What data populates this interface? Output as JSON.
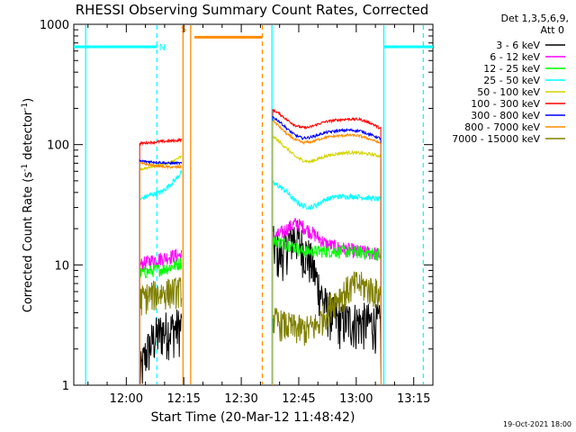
{
  "chart_data": {
    "type": "line",
    "title": "RHESSI Observing Summary Count Rates, Corrected",
    "xlabel": "Start Time (20-Mar-12 11:48:42)",
    "ylabel": "Corrected Count Rate (s^-1 detector^-1)",
    "ylabel_main": "Corrected Count Rate (s",
    "ylabel_sup1": "-1",
    "ylabel_mid": " detector",
    "ylabel_sup2": "-1",
    "ylabel_end": ")",
    "yscale": "log",
    "ylim": [
      1,
      1000
    ],
    "xlim_min": [
      -13.7,
      80.0
    ],
    "x_ticks": [
      {
        "m": 0,
        "label": "12:00"
      },
      {
        "m": 15,
        "label": "12:15"
      },
      {
        "m": 30,
        "label": "12:30"
      },
      {
        "m": 45,
        "label": "12:45"
      },
      {
        "m": 60,
        "label": "13:00"
      },
      {
        "m": 75,
        "label": "13:15"
      }
    ],
    "y_ticks": [
      {
        "v": 1,
        "label": "1"
      },
      {
        "v": 10,
        "label": "10"
      },
      {
        "v": 100,
        "label": "100"
      },
      {
        "v": 1000,
        "label": "1000"
      }
    ],
    "legend_header": [
      "Det 1,3,5,6,9,",
      "Att 0"
    ],
    "timestamp": "19-Oct-2021 18:00",
    "flags": {
      "night": {
        "label": "N",
        "level": 650,
        "segments": [
          [
            -13.7,
            8.0
          ],
          [
            67.2,
            80.0
          ]
        ],
        "color": "#00ffff"
      },
      "saa": {
        "label": "S",
        "level": 780,
        "segments": [
          [
            17.8,
            35.5
          ]
        ],
        "color": "#ff8c00"
      }
    },
    "markers": [
      {
        "m": -10.6,
        "color": "#00ffff",
        "style": "solid"
      },
      {
        "m": 8.0,
        "color": "#00ffff",
        "style": "dashed"
      },
      {
        "m": 14.8,
        "color": "#ff8c00",
        "style": "solid"
      },
      {
        "m": 16.8,
        "color": "#ff8c00",
        "style": "solid"
      },
      {
        "m": 35.5,
        "color": "#ff8c00",
        "style": "dashed"
      },
      {
        "m": 38.0,
        "color": "#00ffff",
        "style": "solid"
      },
      {
        "m": 67.2,
        "color": "#00ffff",
        "style": "solid"
      },
      {
        "m": 77.5,
        "color": "#00ffff",
        "style": "dashed"
      }
    ],
    "series": [
      {
        "name": "3 - 6 keV",
        "color": "#000000",
        "a": [
          [
            3.5,
            1.2
          ],
          [
            5,
            1.8
          ],
          [
            7,
            2.4
          ],
          [
            9,
            2.8
          ],
          [
            11,
            2.9
          ],
          [
            13,
            3.0
          ],
          [
            14.5,
            3.1
          ]
        ],
        "b": [
          [
            38.2,
            15
          ],
          [
            40,
            12
          ],
          [
            42,
            15
          ],
          [
            44,
            18
          ],
          [
            46,
            14
          ],
          [
            48,
            11
          ],
          [
            50,
            7
          ],
          [
            52,
            4.5
          ],
          [
            55,
            3.5
          ],
          [
            60,
            3.4
          ],
          [
            65,
            3.3
          ],
          [
            66.5,
            3.2
          ]
        ]
      },
      {
        "name": "6 - 12 keV",
        "color": "#ff00ff",
        "a": [
          [
            3.5,
            10
          ],
          [
            7,
            11
          ],
          [
            10,
            11.5
          ],
          [
            13,
            12
          ],
          [
            14.5,
            12
          ]
        ],
        "b": [
          [
            38.2,
            17
          ],
          [
            40,
            18
          ],
          [
            42,
            20
          ],
          [
            44,
            22
          ],
          [
            46,
            21
          ],
          [
            48,
            19
          ],
          [
            50,
            17
          ],
          [
            52,
            15
          ],
          [
            55,
            14
          ],
          [
            60,
            13
          ],
          [
            65,
            12.5
          ],
          [
            66.5,
            12
          ]
        ]
      },
      {
        "name": "12 - 25 keV",
        "color": "#00ff00",
        "a": [
          [
            3.5,
            8.5
          ],
          [
            7,
            9
          ],
          [
            10,
            9.3
          ],
          [
            13,
            10
          ],
          [
            14.5,
            10.5
          ]
        ],
        "b": [
          [
            38.2,
            16
          ],
          [
            40,
            15.5
          ],
          [
            42,
            15
          ],
          [
            44,
            14
          ],
          [
            46,
            13
          ],
          [
            48,
            13
          ],
          [
            50,
            13
          ],
          [
            55,
            13
          ],
          [
            60,
            12.8
          ],
          [
            65,
            12.5
          ],
          [
            66.5,
            12
          ]
        ]
      },
      {
        "name": "25 - 50 keV",
        "color": "#00ffff",
        "a": [
          [
            3.5,
            35
          ],
          [
            6,
            38
          ],
          [
            9,
            40
          ],
          [
            11,
            45
          ],
          [
            13,
            52
          ],
          [
            14.5,
            60
          ]
        ],
        "b": [
          [
            38.2,
            48
          ],
          [
            40,
            45
          ],
          [
            42,
            40
          ],
          [
            44,
            34
          ],
          [
            46,
            31
          ],
          [
            48,
            30
          ],
          [
            50,
            32
          ],
          [
            52,
            35
          ],
          [
            55,
            37
          ],
          [
            60,
            37
          ],
          [
            63,
            36
          ],
          [
            66.5,
            35
          ]
        ]
      },
      {
        "name": "50 - 100 keV",
        "color": "#d4d400",
        "a": [
          [
            3.5,
            62
          ],
          [
            6,
            65
          ],
          [
            9,
            68
          ],
          [
            11,
            70
          ],
          [
            13,
            75
          ],
          [
            14.5,
            80
          ]
        ],
        "b": [
          [
            38.2,
            118
          ],
          [
            40,
            105
          ],
          [
            42,
            92
          ],
          [
            44,
            80
          ],
          [
            46,
            74
          ],
          [
            48,
            72
          ],
          [
            50,
            76
          ],
          [
            52,
            80
          ],
          [
            55,
            84
          ],
          [
            58,
            86
          ],
          [
            61,
            85
          ],
          [
            64,
            83
          ],
          [
            66.5,
            80
          ]
        ]
      },
      {
        "name": "100 - 300 keV",
        "color": "#ff0000",
        "a": [
          [
            3.5,
            102
          ],
          [
            6,
            104
          ],
          [
            9,
            106
          ],
          [
            11,
            107
          ],
          [
            13,
            108
          ],
          [
            14.5,
            110
          ]
        ],
        "b": [
          [
            38.2,
            195
          ],
          [
            40,
            180
          ],
          [
            42,
            160
          ],
          [
            44,
            145
          ],
          [
            46,
            138
          ],
          [
            48,
            140
          ],
          [
            50,
            148
          ],
          [
            52,
            155
          ],
          [
            55,
            160
          ],
          [
            58,
            163
          ],
          [
            61,
            162
          ],
          [
            64,
            150
          ],
          [
            66.5,
            135
          ]
        ]
      },
      {
        "name": "300 - 800 keV",
        "color": "#0000ff",
        "a": [
          [
            3.5,
            73
          ],
          [
            6,
            72
          ],
          [
            9,
            71
          ],
          [
            11,
            70
          ],
          [
            13,
            70
          ],
          [
            14.5,
            70
          ]
        ],
        "b": [
          [
            38.2,
            170
          ],
          [
            40,
            155
          ],
          [
            42,
            135
          ],
          [
            44,
            120
          ],
          [
            46,
            113
          ],
          [
            48,
            115
          ],
          [
            50,
            120
          ],
          [
            52,
            126
          ],
          [
            55,
            130
          ],
          [
            58,
            132
          ],
          [
            61,
            130
          ],
          [
            64,
            120
          ],
          [
            66.5,
            112
          ]
        ]
      },
      {
        "name": "800 - 7000 keV",
        "color": "#ff8c00",
        "a": [
          [
            3.5,
            70
          ],
          [
            6,
            68
          ],
          [
            9,
            66
          ],
          [
            11,
            65
          ],
          [
            13,
            65
          ],
          [
            14.5,
            65
          ]
        ],
        "b": [
          [
            38.2,
            160
          ],
          [
            40,
            140
          ],
          [
            42,
            122
          ],
          [
            44,
            110
          ],
          [
            46,
            104
          ],
          [
            48,
            105
          ],
          [
            50,
            110
          ],
          [
            52,
            115
          ],
          [
            55,
            118
          ],
          [
            58,
            120
          ],
          [
            61,
            118
          ],
          [
            64,
            110
          ],
          [
            66.5,
            102
          ]
        ]
      },
      {
        "name": "7000 - 15000 keV",
        "color": "#808000",
        "a": [
          [
            3.5,
            5.2
          ],
          [
            6,
            5.6
          ],
          [
            9,
            5.9
          ],
          [
            11,
            6.0
          ],
          [
            13,
            6.1
          ],
          [
            14.5,
            6.2
          ]
        ],
        "b": [
          [
            38.2,
            3.5
          ],
          [
            41,
            3.2
          ],
          [
            44,
            3.0
          ],
          [
            47,
            2.9
          ],
          [
            50,
            3.2
          ],
          [
            52,
            4.0
          ],
          [
            54,
            5.0
          ],
          [
            57,
            6.0
          ],
          [
            60,
            7.0
          ],
          [
            63,
            6.5
          ],
          [
            65,
            6.0
          ],
          [
            66.5,
            5.5
          ]
        ]
      }
    ]
  }
}
